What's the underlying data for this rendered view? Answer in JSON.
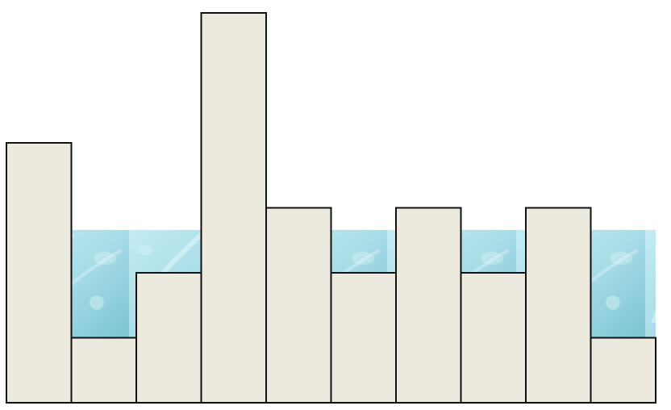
{
  "diagram": {
    "type": "trapping-rain-water",
    "heights": [
      4,
      1,
      2,
      6,
      3,
      2,
      3,
      2,
      3,
      1
    ],
    "water_level": 2.66,
    "colors": {
      "bar_fill": "#ece9df",
      "bar_stroke": "#111111",
      "water_light": "#c5ecf3",
      "water_mid": "#a8dde8",
      "water_dark": "#7cc3d2",
      "water_highlight": "#e4f7fa",
      "page_bg": "#ffffff"
    }
  }
}
